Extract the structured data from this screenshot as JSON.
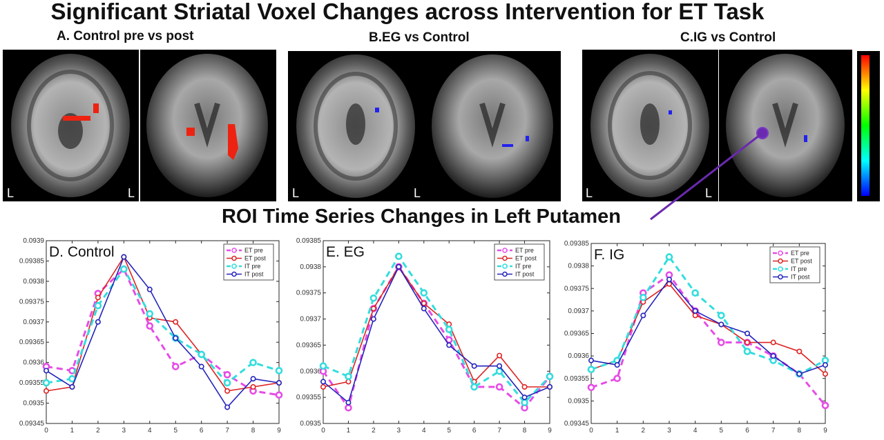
{
  "figure": {
    "title": "Significant Striatal Voxel Changes across Intervention for ET Task",
    "subtitle": "ROI Time Series Changes in Left Putamen",
    "brain_panels": [
      {
        "label": "A. Control pre vs post",
        "orientation_labels": [
          "L",
          "L"
        ]
      },
      {
        "label": "B.EG vs Control",
        "orientation_labels": [
          "L",
          "L"
        ]
      },
      {
        "label": "C.IG vs Control",
        "orientation_labels": [
          "L",
          "L"
        ]
      }
    ],
    "colorbar": {
      "colors": [
        "#ff0000",
        "#ffff00",
        "#00ff00",
        "#00ffff",
        "#0000ff"
      ]
    }
  },
  "chart_data": [
    {
      "type": "line",
      "panel_label": "D. Control",
      "x": [
        0,
        1,
        2,
        3,
        4,
        5,
        6,
        7,
        8,
        9
      ],
      "ylim": [
        0.09345,
        0.0939
      ],
      "yticks": [
        0.09345,
        0.0935,
        0.09355,
        0.0936,
        0.09365,
        0.0937,
        0.09375,
        0.0938,
        0.09385,
        0.0939
      ],
      "ytick_labels": [
        "0.09345",
        "0.0935",
        "0.09355",
        "0.0936",
        "0.09365",
        "0.0937",
        "0.09375",
        "0.0938",
        "0.09385",
        "0.0939"
      ],
      "xlim": [
        0,
        9
      ],
      "legend_position": "top-right",
      "series": [
        {
          "name": "ET pre",
          "color": "#e64ce6",
          "style": "dashed",
          "values": [
            0.09359,
            0.09358,
            0.09377,
            0.09383,
            0.09369,
            0.09359,
            0.09362,
            0.09357,
            0.09353,
            0.09352
          ]
        },
        {
          "name": "ET post",
          "color": "#dd2222",
          "style": "solid",
          "values": [
            0.09353,
            0.09354,
            0.09376,
            0.09386,
            0.09371,
            0.0937,
            0.09362,
            0.09353,
            0.09354,
            0.09355
          ]
        },
        {
          "name": "IT pre",
          "color": "#33dddd",
          "style": "dashed",
          "values": [
            0.09355,
            0.09356,
            0.09374,
            0.09383,
            0.09372,
            0.09366,
            0.09362,
            0.09355,
            0.0936,
            0.09358
          ]
        },
        {
          "name": "IT post",
          "color": "#2222bb",
          "style": "solid",
          "values": [
            0.09358,
            0.09354,
            0.0937,
            0.09386,
            0.09378,
            0.09366,
            0.09359,
            0.09349,
            0.09356,
            0.09355
          ]
        }
      ]
    },
    {
      "type": "line",
      "panel_label": "E. EG",
      "x": [
        0,
        1,
        2,
        3,
        4,
        5,
        6,
        7,
        8,
        9
      ],
      "ylim": [
        0.0935,
        0.09385
      ],
      "yticks": [
        0.0935,
        0.09355,
        0.0936,
        0.09365,
        0.0937,
        0.09375,
        0.0938,
        0.09385
      ],
      "ytick_labels": [
        "0.0935",
        "0.09355",
        "0.0936",
        "0.09365",
        "0.0937",
        "0.09375",
        "0.0938",
        "0.09385"
      ],
      "xlim": [
        0,
        9
      ],
      "legend_position": "top-right",
      "series": [
        {
          "name": "ET pre",
          "color": "#e64ce6",
          "style": "dashed",
          "values": [
            0.0936,
            0.09353,
            0.09372,
            0.0938,
            0.09373,
            0.09366,
            0.09357,
            0.09357,
            0.09353,
            0.09359
          ]
        },
        {
          "name": "ET post",
          "color": "#dd2222",
          "style": "solid",
          "values": [
            0.09357,
            0.09358,
            0.09372,
            0.0938,
            0.09373,
            0.09369,
            0.09358,
            0.09363,
            0.09357,
            0.09357
          ]
        },
        {
          "name": "IT pre",
          "color": "#33dddd",
          "style": "dashed",
          "values": [
            0.09361,
            0.09359,
            0.09374,
            0.09382,
            0.09375,
            0.09368,
            0.09357,
            0.0936,
            0.09354,
            0.09359
          ]
        },
        {
          "name": "IT post",
          "color": "#2222bb",
          "style": "solid",
          "values": [
            0.09358,
            0.09354,
            0.0937,
            0.0938,
            0.09372,
            0.09365,
            0.09361,
            0.09361,
            0.09355,
            0.09357
          ]
        }
      ]
    },
    {
      "type": "line",
      "panel_label": "F. IG",
      "x": [
        0,
        1,
        2,
        3,
        4,
        5,
        6,
        7,
        8,
        9
      ],
      "ylim": [
        0.09345,
        0.09385
      ],
      "yticks": [
        0.09345,
        0.0935,
        0.09355,
        0.0936,
        0.09365,
        0.0937,
        0.09375,
        0.0938,
        0.09385
      ],
      "ytick_labels": [
        "0.09345",
        "0.0935",
        "0.09355",
        "0.0936",
        "0.09365",
        "0.0937",
        "0.09375",
        "0.0938",
        "0.09385"
      ],
      "xlim": [
        0,
        9
      ],
      "legend_position": "top-right",
      "series": [
        {
          "name": "ET pre",
          "color": "#e64ce6",
          "style": "dashed",
          "values": [
            0.09353,
            0.09355,
            0.09374,
            0.09378,
            0.0937,
            0.09363,
            0.09363,
            0.0936,
            0.09356,
            0.09349
          ]
        },
        {
          "name": "ET post",
          "color": "#dd2222",
          "style": "solid",
          "values": [
            0.09357,
            0.09359,
            0.09372,
            0.09376,
            0.09369,
            0.09367,
            0.09363,
            0.09363,
            0.09361,
            0.09356
          ]
        },
        {
          "name": "IT pre",
          "color": "#33dddd",
          "style": "dashed",
          "values": [
            0.09357,
            0.09359,
            0.09373,
            0.09382,
            0.09374,
            0.09369,
            0.09361,
            0.09359,
            0.09356,
            0.09359
          ]
        },
        {
          "name": "IT post",
          "color": "#2222bb",
          "style": "solid",
          "values": [
            0.09359,
            0.09358,
            0.09369,
            0.09377,
            0.0937,
            0.09367,
            0.09365,
            0.0936,
            0.09356,
            0.09358
          ]
        }
      ]
    }
  ]
}
